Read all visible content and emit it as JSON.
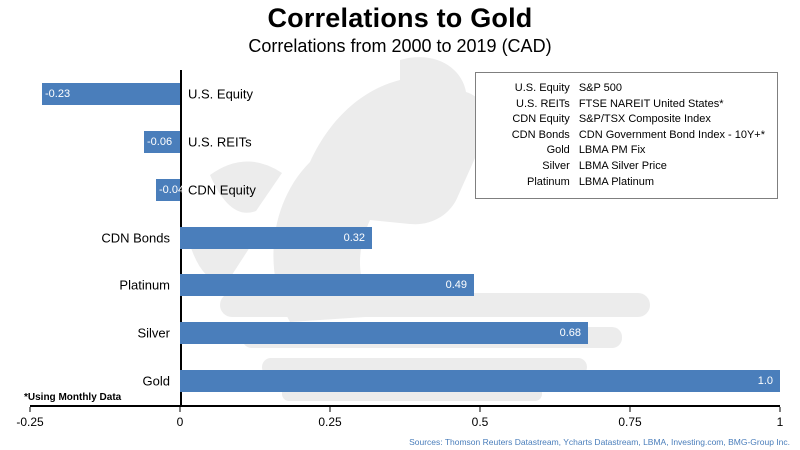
{
  "title": "Correlations to Gold",
  "subtitle": "Correlations from 2000 to 2019 (CAD)",
  "footnote": "*Using Monthly Data",
  "sources": "Sources: Thomson Reuters Datastream, Ycharts Datastream, LBMA, Investing.com, BMG-Group Inc.",
  "colors": {
    "bar": "#4A7EBB",
    "axis": "#000000",
    "value_label_text": "#FFFFFF",
    "sources_text": "#4A7EBB",
    "legend_border": "#7F7F7F",
    "watermark": "#ECECEC"
  },
  "legend": {
    "rows": [
      {
        "label": "U.S. Equity",
        "desc": "S&P 500"
      },
      {
        "label": "U.S. REITs",
        "desc": "FTSE NAREIT United States*"
      },
      {
        "label": "CDN Equity",
        "desc": "S&P/TSX Composite Index"
      },
      {
        "label": "CDN Bonds",
        "desc": "CDN Government Bond Index - 10Y+*"
      },
      {
        "label": "Gold",
        "desc": "LBMA PM Fix"
      },
      {
        "label": "Silver",
        "desc": "LBMA Silver Price"
      },
      {
        "label": "Platinum",
        "desc": "LBMA Platinum"
      }
    ]
  },
  "chart_data": {
    "type": "bar",
    "orientation": "horizontal",
    "title": "Correlations to Gold",
    "subtitle": "Correlations from 2000 to 2019 (CAD)",
    "categories": [
      "U.S. Equity",
      "U.S. REITs",
      "CDN Equity",
      "CDN Bonds",
      "Platinum",
      "Silver",
      "Gold"
    ],
    "values": [
      -0.23,
      -0.06,
      -0.04,
      0.32,
      0.49,
      0.68,
      1.0
    ],
    "value_labels": [
      "-0.23",
      "-0.06",
      "-0.04",
      "0.32",
      "0.49",
      "0.68",
      "1.0"
    ],
    "xlabel": "",
    "ylabel": "",
    "xlim": [
      -0.25,
      1
    ],
    "xticks": [
      -0.25,
      0,
      0.25,
      0.5,
      0.75,
      1
    ],
    "xtick_labels": [
      "-0.25",
      "0",
      "0.25",
      "0.5",
      "0.75",
      "1"
    ],
    "grid": false,
    "legend_position": "top-right"
  }
}
